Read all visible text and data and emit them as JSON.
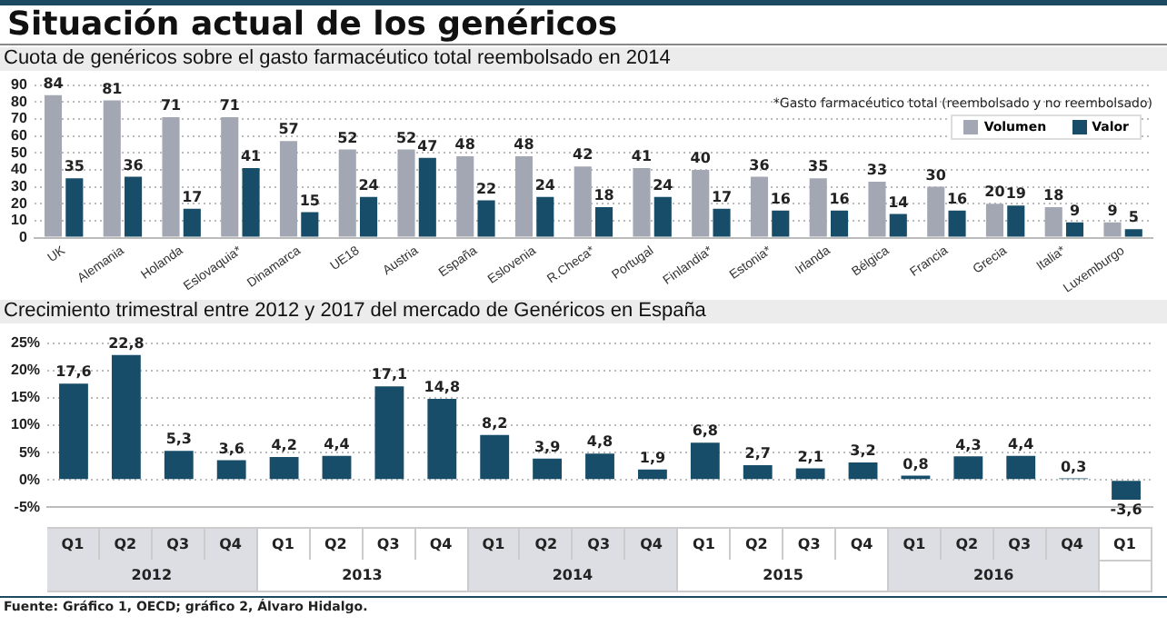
{
  "chart_data": [
    {
      "type": "bar",
      "title": "Situación actual de los genéricos",
      "subtitle": "Cuota de genéricos sobre el gasto farmacéutico total reembolsado en 2014",
      "categories": [
        "UK",
        "Alemania",
        "Holanda",
        "Eslovaquia*",
        "Dinamarca",
        "UE18",
        "Austria",
        "España",
        "Eslovenia",
        "R.Checa*",
        "Portugal",
        "Finlandia*",
        "Estonia*",
        "Irlanda",
        "Bélgica",
        "Francia",
        "Grecia",
        "Italia*",
        "Luxemburgo"
      ],
      "series": [
        {
          "name": "Volumen",
          "color": "#a3a7b4",
          "values": [
            84,
            81,
            71,
            71,
            57,
            52,
            52,
            48,
            48,
            42,
            41,
            40,
            36,
            35,
            33,
            30,
            20,
            18,
            9
          ]
        },
        {
          "name": "Valor",
          "color": "#174d68",
          "values": [
            35,
            36,
            17,
            41,
            15,
            24,
            47,
            22,
            24,
            18,
            24,
            17,
            16,
            16,
            14,
            16,
            19,
            9,
            5
          ]
        }
      ],
      "ylim": [
        0,
        90
      ],
      "yticks": [
        0,
        10,
        20,
        30,
        40,
        50,
        60,
        70,
        80,
        90
      ],
      "grid": "y",
      "legend": "top right",
      "data_labels": true,
      "annotations": [
        "*Gasto farmacéutico total (reembolsado y no reembolsado)"
      ]
    },
    {
      "type": "bar",
      "title": "Crecimiento trimestral entre 2012 y 2017 del mercado de Genéricos en España",
      "categories": [
        "Q1",
        "Q2",
        "Q3",
        "Q4",
        "Q1",
        "Q2",
        "Q3",
        "Q4",
        "Q1",
        "Q2",
        "Q3",
        "Q4",
        "Q1",
        "Q2",
        "Q3",
        "Q4",
        "Q1",
        "Q2",
        "Q3",
        "Q4",
        "Q1"
      ],
      "values": [
        17.6,
        22.8,
        5.3,
        3.6,
        4.2,
        4.4,
        17.1,
        14.8,
        8.2,
        3.9,
        4.8,
        1.9,
        6.8,
        2.7,
        2.1,
        3.2,
        0.8,
        4.3,
        4.4,
        0.3,
        -3.6
      ],
      "color": "#174d68",
      "value_labels": [
        "17,6",
        "22,8",
        "5,3",
        "3,6",
        "4,2",
        "4,4",
        "17,1",
        "14,8",
        "8,2",
        "3,9",
        "4,8",
        "1,9",
        "6,8",
        "2,7",
        "2,1",
        "3,2",
        "0,8",
        "4,3",
        "4,4",
        "0,3",
        "-3,6"
      ],
      "ylim": [
        -5,
        25
      ],
      "yticks": [
        {
          "value": -5,
          "label": "-5%"
        },
        {
          "value": 0,
          "label": "0%"
        },
        {
          "value": 5,
          "label": "5%"
        },
        {
          "value": 10,
          "label": "10%"
        },
        {
          "value": 15,
          "label": "15%"
        },
        {
          "value": 20,
          "label": "20%"
        },
        {
          "value": 25,
          "label": "25%"
        }
      ],
      "grid": "y",
      "annotations": [
        "2012",
        "2013",
        "2014",
        "2015",
        "2016",
        "Fuente: Gráfico 1, OECD; gráfico 2, Álvaro Hidalgo."
      ]
    }
  ]
}
